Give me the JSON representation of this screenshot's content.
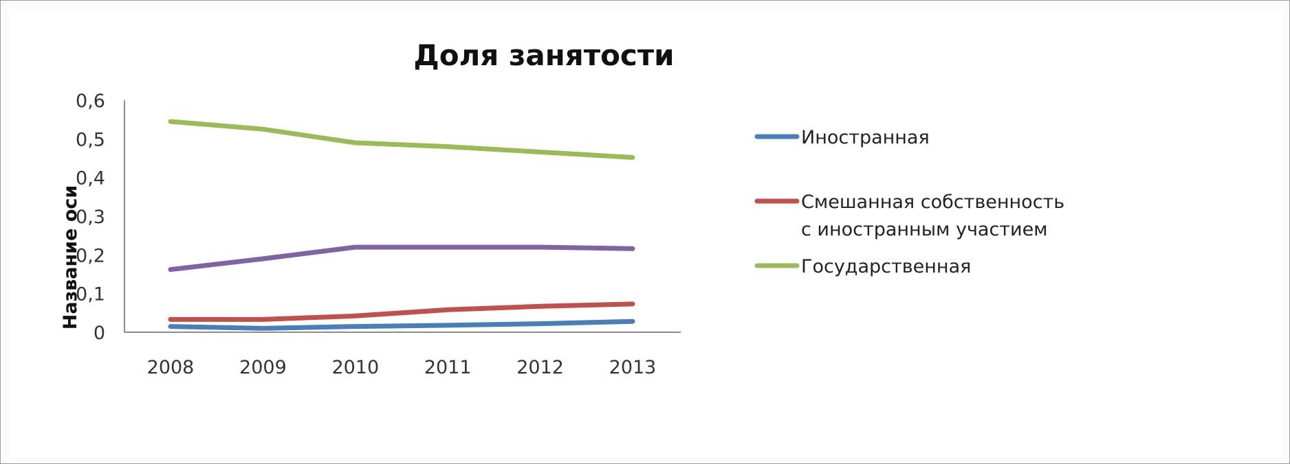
{
  "chart_data": {
    "type": "line",
    "title": "Доля занятости",
    "xlabel": "",
    "ylabel": "Название оси",
    "categories": [
      "2008",
      "2009",
      "2010",
      "2011",
      "2012",
      "2013"
    ],
    "ylim": [
      0,
      0.6
    ],
    "yticks": [
      "0",
      "0,1",
      "0,2",
      "0,3",
      "0,4",
      "0,5",
      "0,6"
    ],
    "grid": false,
    "legend_position": "right",
    "series": [
      {
        "name": "Иностранная",
        "color": "#4a7ebb",
        "values": [
          0.015,
          0.01,
          0.015,
          0.018,
          0.022,
          0.028
        ]
      },
      {
        "name": "Смешанная собственность с иностранным участием",
        "legend_lines": [
          "Смешанная собственность",
          "с иностранным участием"
        ],
        "color": "#c0504d",
        "values": [
          0.033,
          0.033,
          0.042,
          0.058,
          0.067,
          0.073
        ]
      },
      {
        "name": "Государственная",
        "color": "#9bbb59",
        "values": [
          0.545,
          0.525,
          0.49,
          0.48,
          0.466,
          0.452
        ]
      },
      {
        "name": "",
        "color": "#8064a2",
        "values": [
          0.162,
          0.19,
          0.22,
          0.22,
          0.22,
          0.216
        ]
      }
    ]
  }
}
